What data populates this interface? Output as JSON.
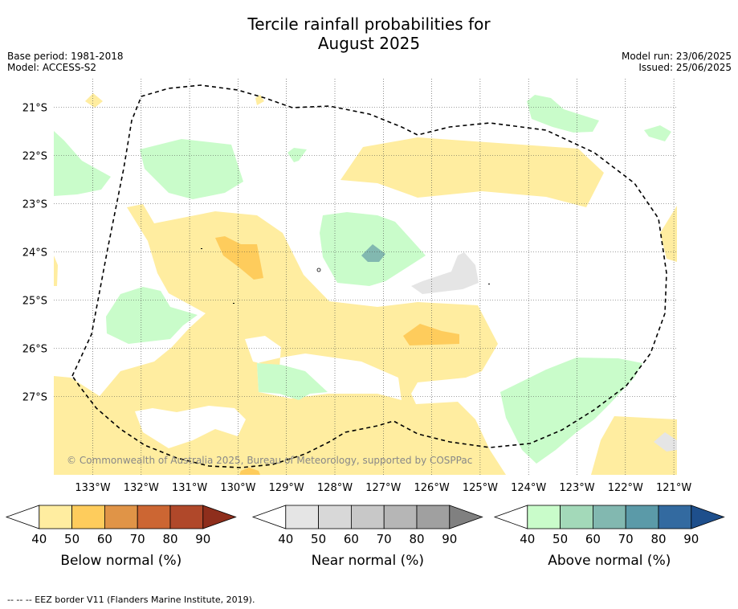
{
  "title_line1": "Tercile rainfall probabilities for",
  "title_line2": "August 2025",
  "base_period": "Base period: 1981-2018",
  "model": "Model: ACCESS-S2",
  "model_run": "Model run: 23/06/2025",
  "issued": "Issued: 25/06/2025",
  "copyright": "© Commonwealth of Australia 2025, Bureau of Meteorology, supported by COSPPac",
  "footnote": "--  --  -- EEZ border V11 (Flanders Marine Institute, 2019).",
  "lat_labels": [
    "21°S",
    "22°S",
    "23°S",
    "24°S",
    "25°S",
    "26°S",
    "27°S"
  ],
  "lon_labels": [
    "133°W",
    "132°W",
    "131°W",
    "130°W",
    "129°W",
    "128°W",
    "127°W",
    "126°W",
    "125°W",
    "124°W",
    "123°W",
    "122°W",
    "121°W"
  ],
  "colorbars": [
    {
      "title": "Below normal (%)",
      "ticks": [
        "40",
        "50",
        "60",
        "70",
        "80",
        "90"
      ],
      "colors": [
        "#ffeda0",
        "#fecc5c",
        "#e09447",
        "#cc6633",
        "#b0482a",
        "#8e2e1c"
      ]
    },
    {
      "title": "Near normal (%)",
      "ticks": [
        "40",
        "50",
        "60",
        "70",
        "80",
        "90"
      ],
      "colors": [
        "#e5e5e5",
        "#d8d8d8",
        "#c8c8c8",
        "#b6b6b6",
        "#a0a0a0",
        "#808080"
      ]
    },
    {
      "title": "Above normal (%)",
      "ticks": [
        "40",
        "50",
        "60",
        "70",
        "80",
        "90"
      ],
      "colors": [
        "#c9fcca",
        "#a3d9b9",
        "#82b8b0",
        "#5b9aa8",
        "#336aa0",
        "#1e4f8c"
      ]
    }
  ]
}
